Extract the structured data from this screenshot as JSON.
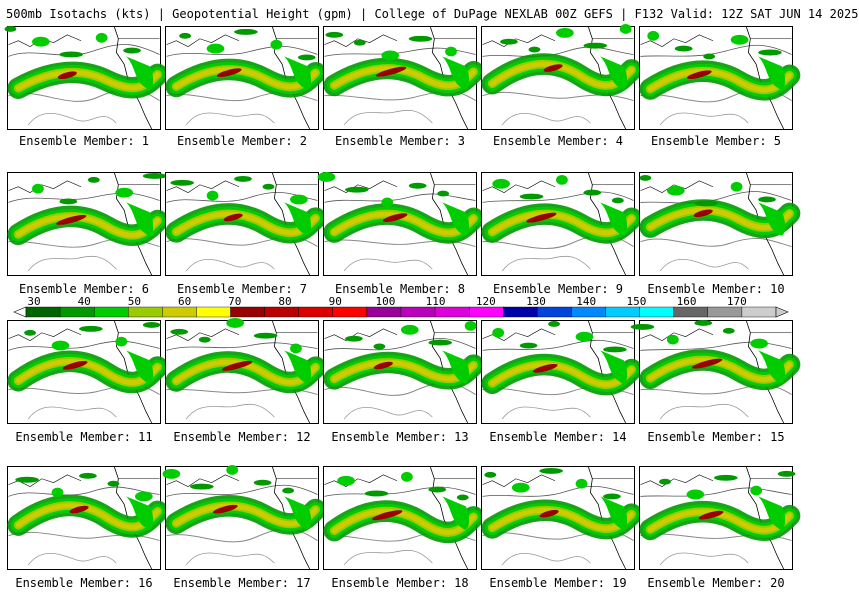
{
  "header": {
    "title": "500mb Isotachs (kts) | Geopotential Height (gpm) | College of DuPage NEXLAB   00Z GEFS | F132 Valid: 12Z SAT JUN 14 2025"
  },
  "members": [
    "Ensemble Member: 1",
    "Ensemble Member: 2",
    "Ensemble Member: 3",
    "Ensemble Member: 4",
    "Ensemble Member: 5",
    "Ensemble Member: 6",
    "Ensemble Member: 7",
    "Ensemble Member: 8",
    "Ensemble Member: 9",
    "Ensemble Member: 10",
    "Ensemble Member: 11",
    "Ensemble Member: 12",
    "Ensemble Member: 13",
    "Ensemble Member: 14",
    "Ensemble Member: 15",
    "Ensemble Member: 16",
    "Ensemble Member: 17",
    "Ensemble Member: 18",
    "Ensemble Member: 19",
    "Ensemble Member: 20"
  ],
  "color_scale": {
    "tick_labels": [
      "30",
      "40",
      "50",
      "60",
      "70",
      "80",
      "90",
      "100",
      "110",
      "120",
      "130",
      "140",
      "150",
      "160",
      "170"
    ],
    "colors": [
      "#006400",
      "#009900",
      "#00cc00",
      "#99cc00",
      "#cccc00",
      "#ffff00",
      "#990000",
      "#bb0000",
      "#dd0000",
      "#ff0000",
      "#990099",
      "#bb00bb",
      "#dd00dd",
      "#ff00ff",
      "#0000aa",
      "#0044dd",
      "#0088ff",
      "#00ccff",
      "#00ffff",
      "#666666",
      "#999999",
      "#cccccc"
    ]
  }
}
